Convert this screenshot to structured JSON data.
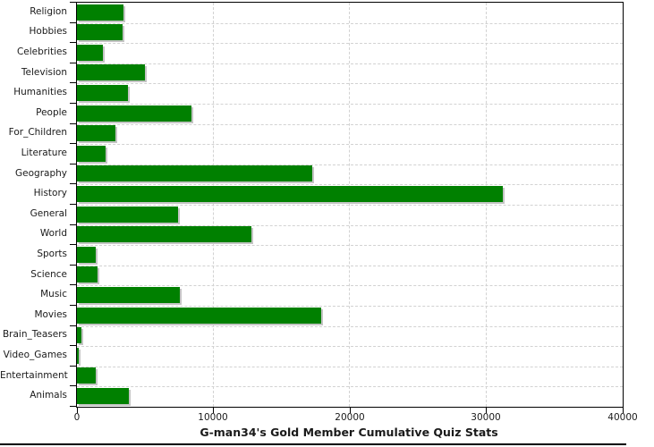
{
  "chart_data": {
    "type": "bar",
    "orientation": "horizontal",
    "title": "G-man34's Gold Member Cumulative Quiz Stats",
    "title_position": "bottom-center",
    "categories": [
      "Religion",
      "Hobbies",
      "Celebrities",
      "Television",
      "Humanities",
      "People",
      "For_Children",
      "Literature",
      "Geography",
      "History",
      "General",
      "World",
      "Sports",
      "Science",
      "Music",
      "Movies",
      "Brain_Teasers",
      "Video_Games",
      "Entertainment",
      "Animals"
    ],
    "values": [
      3400,
      3350,
      1900,
      5000,
      3750,
      8400,
      2800,
      2100,
      17250,
      31200,
      7400,
      12800,
      1350,
      1500,
      7550,
      17900,
      300,
      100,
      1400,
      3800
    ],
    "xlim": [
      0,
      40000
    ],
    "x_ticks": [
      0,
      10000,
      20000,
      30000,
      40000
    ],
    "x_tick_labels": [
      "0",
      "10000",
      "20000",
      "30000",
      "40000"
    ],
    "grid": true,
    "legend": "none",
    "colors": {
      "bar": "#008000",
      "bar_shadow": "#c4c4c4",
      "grid": "#d2d2d2",
      "axis": "#000000",
      "text": "#1a1a1a",
      "background": "#ffffff"
    }
  }
}
